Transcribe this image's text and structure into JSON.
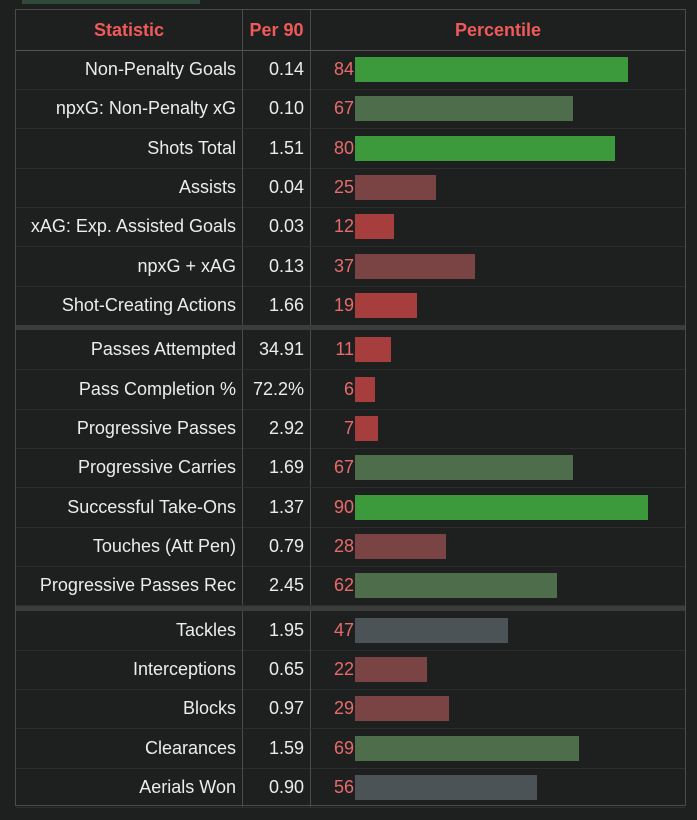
{
  "header": {
    "statistic": "Statistic",
    "per90": "Per 90",
    "percentile": "Percentile"
  },
  "colors": {
    "green": "#3c9a3c",
    "green_muted": "#4e6e4b",
    "red": "#a63e3e",
    "red_muted": "#7a4444",
    "gray": "#4c5356",
    "header_text": "#f05a5a"
  },
  "groups": [
    [
      {
        "stat": "Non-Penalty Goals",
        "per90": "0.14",
        "percentile": "84"
      },
      {
        "stat": "npxG: Non-Penalty xG",
        "per90": "0.10",
        "percentile": "67"
      },
      {
        "stat": "Shots Total",
        "per90": "1.51",
        "percentile": "80"
      },
      {
        "stat": "Assists",
        "per90": "0.04",
        "percentile": "25"
      },
      {
        "stat": "xAG: Exp. Assisted Goals",
        "per90": "0.03",
        "percentile": "12"
      },
      {
        "stat": "npxG + xAG",
        "per90": "0.13",
        "percentile": "37"
      },
      {
        "stat": "Shot-Creating Actions",
        "per90": "1.66",
        "percentile": "19"
      }
    ],
    [
      {
        "stat": "Passes Attempted",
        "per90": "34.91",
        "percentile": "11"
      },
      {
        "stat": "Pass Completion %",
        "per90": "72.2%",
        "percentile": "6"
      },
      {
        "stat": "Progressive Passes",
        "per90": "2.92",
        "percentile": "7"
      },
      {
        "stat": "Progressive Carries",
        "per90": "1.69",
        "percentile": "67"
      },
      {
        "stat": "Successful Take-Ons",
        "per90": "1.37",
        "percentile": "90"
      },
      {
        "stat": "Touches (Att Pen)",
        "per90": "0.79",
        "percentile": "28"
      },
      {
        "stat": "Progressive Passes Rec",
        "per90": "2.45",
        "percentile": "62"
      }
    ],
    [
      {
        "stat": "Tackles",
        "per90": "1.95",
        "percentile": "47"
      },
      {
        "stat": "Interceptions",
        "per90": "0.65",
        "percentile": "22"
      },
      {
        "stat": "Blocks",
        "per90": "0.97",
        "percentile": "29"
      },
      {
        "stat": "Clearances",
        "per90": "1.59",
        "percentile": "69"
      },
      {
        "stat": "Aerials Won",
        "per90": "0.90",
        "percentile": "56"
      }
    ]
  ]
}
